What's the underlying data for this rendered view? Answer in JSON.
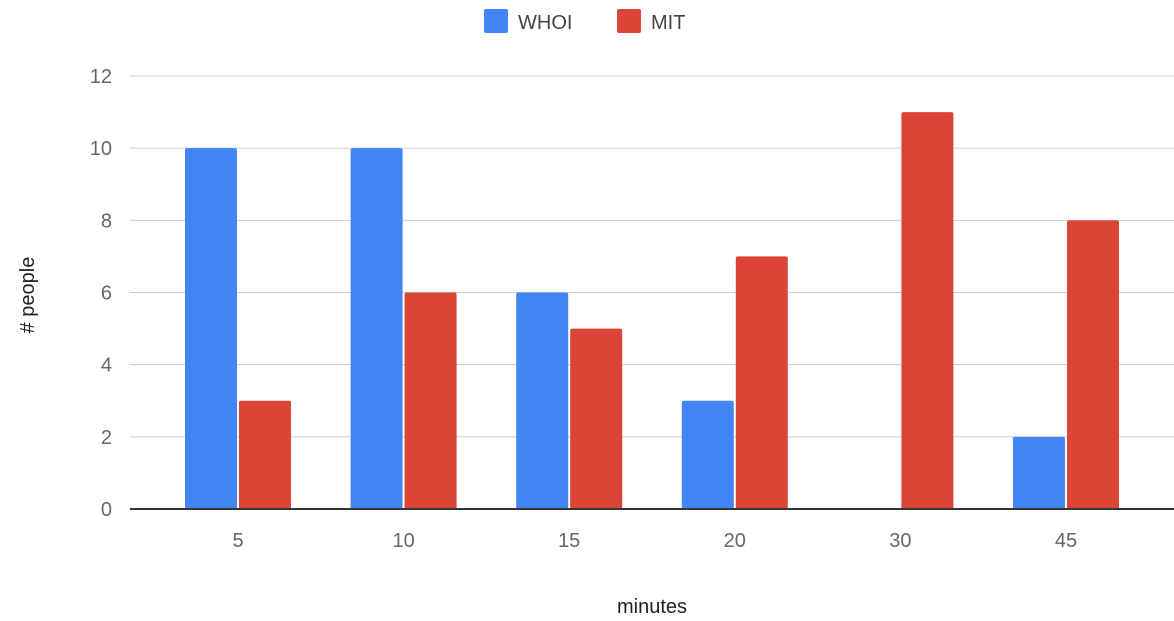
{
  "chart_data": {
    "type": "bar",
    "title": "",
    "xlabel": "minutes",
    "ylabel": "# people",
    "categories": [
      "5",
      "10",
      "15",
      "20",
      "30",
      "45"
    ],
    "series": [
      {
        "name": "WHOI",
        "color": "#4285f4",
        "values": [
          10,
          10,
          6,
          3,
          0,
          2
        ]
      },
      {
        "name": "MIT",
        "color": "#db4437",
        "values": [
          3,
          6,
          5,
          7,
          11,
          8
        ]
      }
    ],
    "ylim": [
      0,
      12
    ],
    "yticks": [
      "0",
      "2",
      "4",
      "6",
      "8",
      "10",
      "12"
    ],
    "grid": true,
    "legend": "top-center"
  }
}
